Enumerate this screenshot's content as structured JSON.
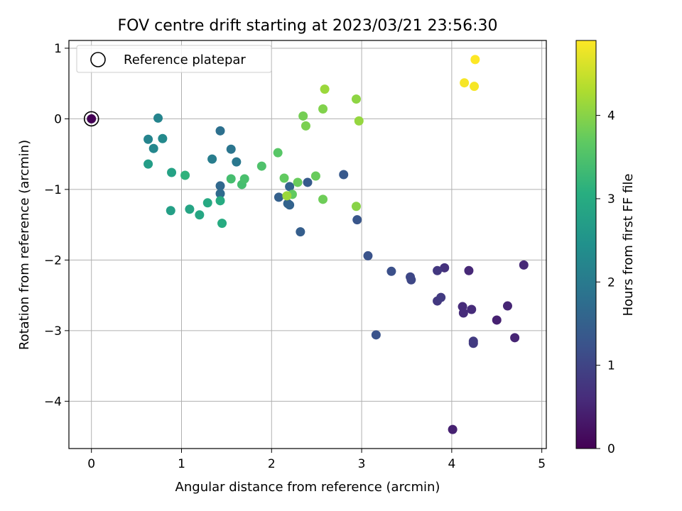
{
  "chart_data": {
    "type": "scatter",
    "title": "FOV centre drift starting at 2023/03/21 23:56:30",
    "xlabel": "Angular distance from reference (arcmin)",
    "ylabel": "Rotation from reference (arcmin)",
    "xlim": [
      -0.25,
      5.05
    ],
    "ylim": [
      -4.67,
      1.11
    ],
    "xticks": [
      0,
      1,
      2,
      3,
      4,
      5
    ],
    "yticks": [
      1,
      0,
      -1,
      -2,
      -3,
      -4
    ],
    "xtick_labels": [
      "0",
      "1",
      "2",
      "3",
      "4",
      "5"
    ],
    "ytick_labels": [
      "1",
      "0",
      "−1",
      "−2",
      "−3",
      "−4"
    ],
    "grid": true,
    "legend": {
      "position": "top-left",
      "label": "Reference platepar"
    },
    "reference_point": {
      "x": 0.0,
      "y": 0.0
    },
    "colorbar": {
      "label": "Hours from first FF file",
      "range": [
        0,
        4.9
      ],
      "ticks": [
        0,
        1,
        2,
        3,
        4
      ],
      "tick_labels": [
        "0",
        "1",
        "2",
        "3",
        "4"
      ],
      "colormap": "viridis"
    },
    "points": [
      {
        "x": 0.0,
        "y": 0.0,
        "c": 0.02
      },
      {
        "x": 4.01,
        "y": -4.4,
        "c": 0.45
      },
      {
        "x": 4.5,
        "y": -2.85,
        "c": 0.45
      },
      {
        "x": 4.62,
        "y": -2.65,
        "c": 0.5
      },
      {
        "x": 4.7,
        "y": -3.1,
        "c": 0.5
      },
      {
        "x": 4.8,
        "y": -2.07,
        "c": 0.55
      },
      {
        "x": 4.19,
        "y": -2.15,
        "c": 0.55
      },
      {
        "x": 4.12,
        "y": -2.66,
        "c": 0.6
      },
      {
        "x": 4.13,
        "y": -2.75,
        "c": 0.6
      },
      {
        "x": 4.22,
        "y": -2.7,
        "c": 0.6
      },
      {
        "x": 3.92,
        "y": -2.11,
        "c": 0.7
      },
      {
        "x": 3.84,
        "y": -2.15,
        "c": 0.8
      },
      {
        "x": 3.84,
        "y": -2.58,
        "c": 0.8
      },
      {
        "x": 3.88,
        "y": -2.53,
        "c": 0.85
      },
      {
        "x": 4.24,
        "y": -3.15,
        "c": 0.85
      },
      {
        "x": 4.24,
        "y": -3.18,
        "c": 0.85
      },
      {
        "x": 3.54,
        "y": -2.24,
        "c": 1.05
      },
      {
        "x": 3.55,
        "y": -2.28,
        "c": 1.05
      },
      {
        "x": 3.33,
        "y": -2.16,
        "c": 1.2
      },
      {
        "x": 3.07,
        "y": -1.94,
        "c": 1.25
      },
      {
        "x": 3.16,
        "y": -3.06,
        "c": 1.25
      },
      {
        "x": 2.95,
        "y": -1.43,
        "c": 1.3
      },
      {
        "x": 2.8,
        "y": -0.79,
        "c": 1.35
      },
      {
        "x": 2.4,
        "y": -0.9,
        "c": 1.4
      },
      {
        "x": 2.32,
        "y": -1.6,
        "c": 1.45
      },
      {
        "x": 2.08,
        "y": -1.11,
        "c": 1.5
      },
      {
        "x": 2.18,
        "y": -1.2,
        "c": 1.55
      },
      {
        "x": 2.2,
        "y": -1.22,
        "c": 1.55
      },
      {
        "x": 2.2,
        "y": -0.96,
        "c": 1.55
      },
      {
        "x": 1.43,
        "y": -0.95,
        "c": 1.65
      },
      {
        "x": 1.43,
        "y": -1.06,
        "c": 1.7
      },
      {
        "x": 1.43,
        "y": -0.17,
        "c": 1.8
      },
      {
        "x": 1.55,
        "y": -0.43,
        "c": 1.9
      },
      {
        "x": 1.61,
        "y": -0.61,
        "c": 1.95
      },
      {
        "x": 1.34,
        "y": -0.57,
        "c": 2.05
      },
      {
        "x": 0.74,
        "y": 0.01,
        "c": 2.2
      },
      {
        "x": 0.63,
        "y": -0.29,
        "c": 2.2
      },
      {
        "x": 0.69,
        "y": -0.42,
        "c": 2.25
      },
      {
        "x": 0.79,
        "y": -0.28,
        "c": 2.3
      },
      {
        "x": 0.63,
        "y": -0.64,
        "c": 2.7
      },
      {
        "x": 0.88,
        "y": -1.3,
        "c": 2.75
      },
      {
        "x": 0.89,
        "y": -0.76,
        "c": 2.8
      },
      {
        "x": 1.09,
        "y": -1.28,
        "c": 2.85
      },
      {
        "x": 1.2,
        "y": -1.36,
        "c": 2.9
      },
      {
        "x": 1.29,
        "y": -1.19,
        "c": 2.95
      },
      {
        "x": 1.43,
        "y": -1.16,
        "c": 3.0
      },
      {
        "x": 1.45,
        "y": -1.48,
        "c": 3.0
      },
      {
        "x": 1.04,
        "y": -0.8,
        "c": 3.15
      },
      {
        "x": 1.55,
        "y": -0.85,
        "c": 3.4
      },
      {
        "x": 1.67,
        "y": -0.93,
        "c": 3.4
      },
      {
        "x": 1.7,
        "y": -0.85,
        "c": 3.45
      },
      {
        "x": 1.89,
        "y": -0.67,
        "c": 3.5
      },
      {
        "x": 2.07,
        "y": -0.48,
        "c": 3.6
      },
      {
        "x": 2.14,
        "y": -0.84,
        "c": 3.7
      },
      {
        "x": 2.23,
        "y": -1.07,
        "c": 3.7
      },
      {
        "x": 2.29,
        "y": -0.9,
        "c": 3.75
      },
      {
        "x": 2.49,
        "y": -0.81,
        "c": 3.75
      },
      {
        "x": 2.57,
        "y": -1.14,
        "c": 3.8
      },
      {
        "x": 2.35,
        "y": 0.04,
        "c": 3.85
      },
      {
        "x": 2.38,
        "y": -0.1,
        "c": 3.9
      },
      {
        "x": 2.57,
        "y": 0.14,
        "c": 3.95
      },
      {
        "x": 2.94,
        "y": -1.24,
        "c": 4.0
      },
      {
        "x": 2.94,
        "y": 0.28,
        "c": 4.05
      },
      {
        "x": 2.97,
        "y": -0.03,
        "c": 4.1
      },
      {
        "x": 2.59,
        "y": 0.42,
        "c": 4.15
      },
      {
        "x": 2.17,
        "y": -1.09,
        "c": 4.15
      },
      {
        "x": 4.14,
        "y": 0.51,
        "c": 4.85
      },
      {
        "x": 4.25,
        "y": 0.46,
        "c": 4.85
      },
      {
        "x": 4.26,
        "y": 0.84,
        "c": 4.9
      }
    ]
  }
}
